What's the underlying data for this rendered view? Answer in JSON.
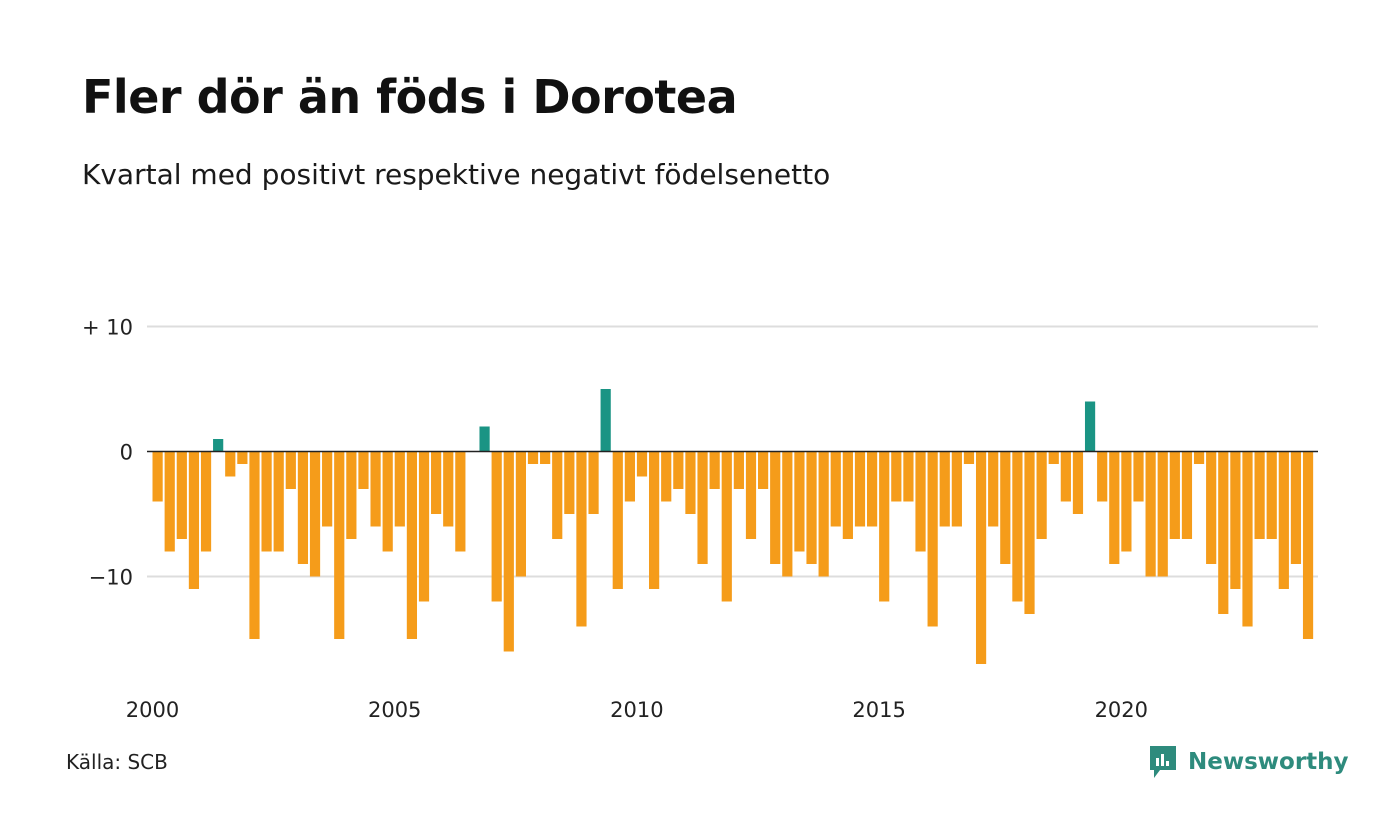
{
  "title": "Fler dör än föds i Dorotea",
  "subtitle": "Kvartal med positivt respektive negativt födelsenetto",
  "source": "Källa: SCB",
  "brand": {
    "name": "Newsworthy",
    "icon": "newsworthy-logo-icon",
    "color": "#2e8b7d"
  },
  "colors": {
    "positive": "#1a9484",
    "negative": "#f59c1a",
    "grid": "#dddddd",
    "zero_line": "#222222"
  },
  "chart_data": {
    "type": "bar",
    "title": "Fler dör än föds i Dorotea",
    "subtitle": "Kvartal med positivt respektive negativt födelsenetto",
    "ylim": [
      -18,
      10
    ],
    "yticks": [
      10,
      0,
      -10
    ],
    "ytick_labels": [
      "+ 10",
      "0",
      "−10"
    ],
    "xticks": [
      "2000",
      "2005",
      "2010",
      "2015",
      "2020"
    ],
    "grid": true,
    "start": "2000 Q1",
    "values": [
      -4,
      -8,
      -7,
      -11,
      -8,
      1,
      -2,
      -1,
      -15,
      -8,
      -8,
      -3,
      -9,
      -10,
      -6,
      -15,
      -7,
      -3,
      -6,
      -8,
      -6,
      -15,
      -12,
      -5,
      -6,
      -8,
      0,
      2,
      -12,
      -16,
      -10,
      -1,
      -1,
      -7,
      -5,
      -14,
      -5,
      5,
      -11,
      -4,
      -2,
      -11,
      -4,
      -3,
      -5,
      -9,
      -3,
      -12,
      -3,
      -7,
      -3,
      -9,
      -10,
      -8,
      -9,
      -10,
      -6,
      -7,
      -6,
      -6,
      -12,
      -4,
      -4,
      -8,
      -14,
      -6,
      -6,
      -1,
      -17,
      -6,
      -9,
      -12,
      -13,
      -7,
      -1,
      -4,
      -5,
      4,
      -4,
      -9,
      -8,
      -4,
      -10,
      -10,
      -7,
      -7,
      -1,
      -9,
      -13,
      -11,
      -14,
      -7,
      -7,
      -11,
      -9,
      -15
    ]
  }
}
